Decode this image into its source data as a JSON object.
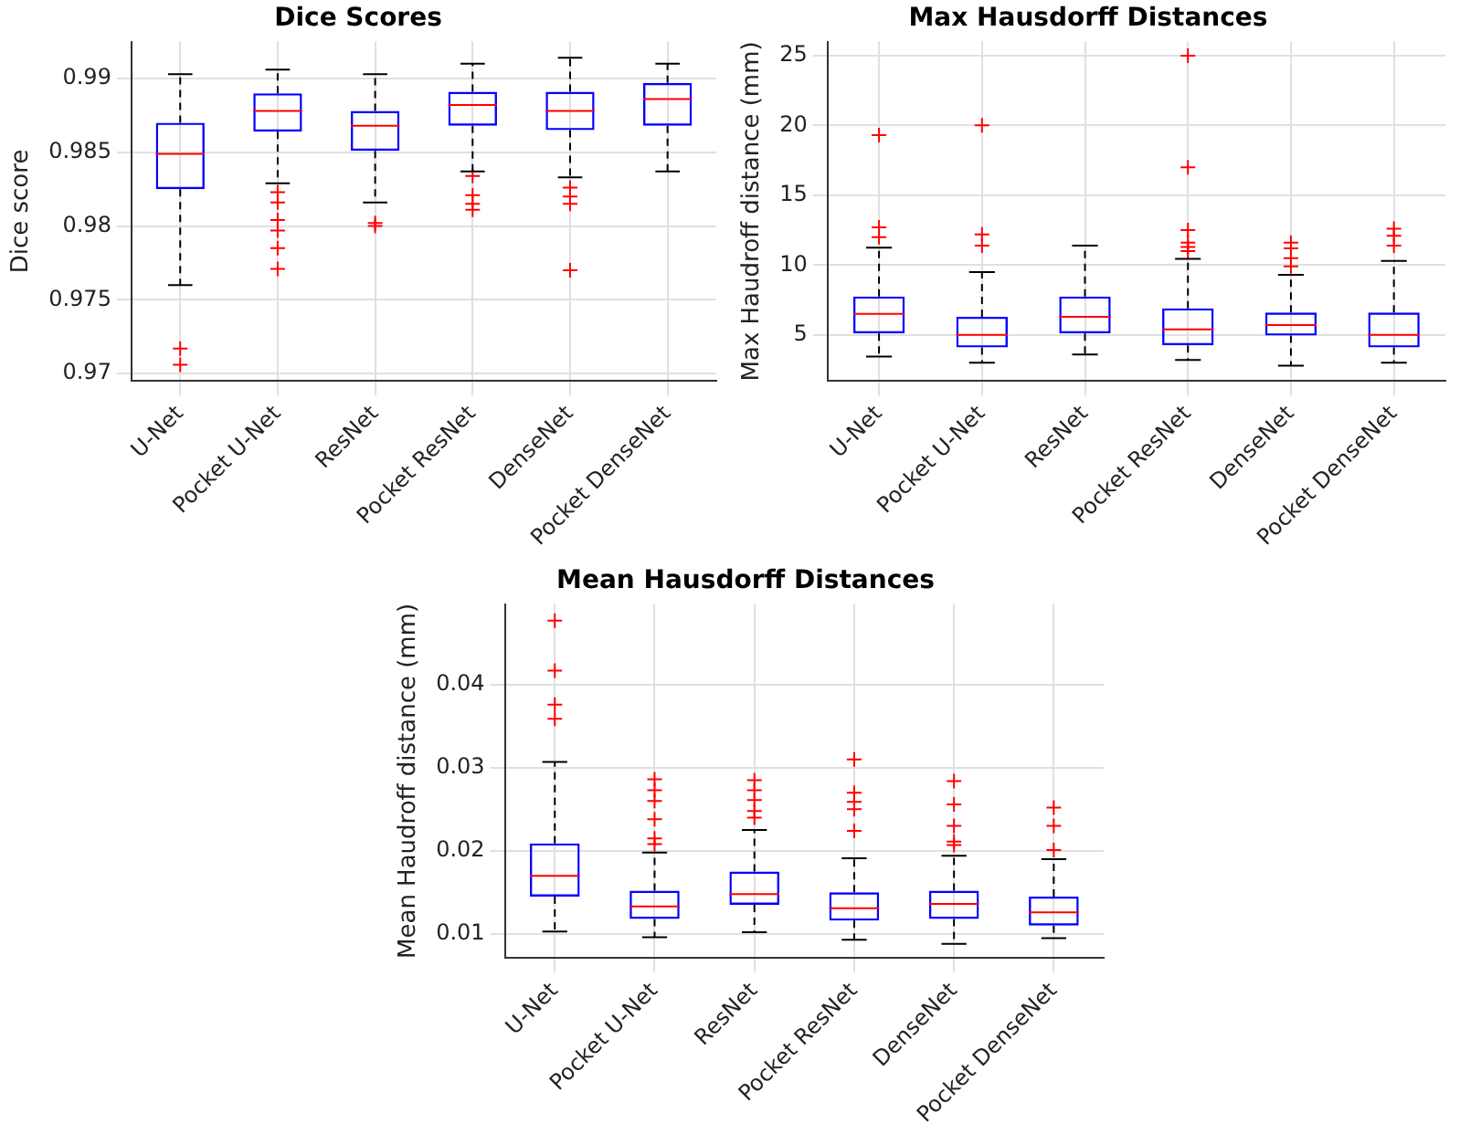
{
  "chart_data": [
    {
      "type": "box",
      "title": "Dice Scores",
      "ylabel": "Dice score",
      "categories": [
        "U-Net",
        "Pocket U-Net",
        "ResNet",
        "Pocket ResNet",
        "DenseNet",
        "Pocket DenseNet"
      ],
      "color": "#0000ff",
      "marker": "cross",
      "grid": true,
      "ylim": [
        0.9695,
        0.9925
      ],
      "yticks": [
        0.97,
        0.975,
        0.98,
        0.985,
        0.99
      ],
      "boxes": [
        {
          "low": 0.976,
          "q1": 0.9825,
          "median": 0.9849,
          "q3": 0.987,
          "high": 0.9903,
          "outliers": [
            0.9717,
            0.9706
          ]
        },
        {
          "low": 0.9829,
          "q1": 0.9864,
          "median": 0.9878,
          "q3": 0.989,
          "high": 0.9906,
          "outliers": [
            0.9823,
            0.9816,
            0.9804,
            0.9797,
            0.9785,
            0.9771
          ]
        },
        {
          "low": 0.9816,
          "q1": 0.9851,
          "median": 0.9868,
          "q3": 0.9878,
          "high": 0.9903,
          "outliers": [
            0.9802,
            0.98
          ]
        },
        {
          "low": 0.9837,
          "q1": 0.9868,
          "median": 0.9882,
          "q3": 0.9891,
          "high": 0.991,
          "outliers": [
            0.9834,
            0.9821,
            0.9815,
            0.9811
          ]
        },
        {
          "low": 0.9833,
          "q1": 0.9865,
          "median": 0.9878,
          "q3": 0.9891,
          "high": 0.9914,
          "outliers": [
            0.9826,
            0.982,
            0.9815,
            0.977
          ]
        },
        {
          "low": 0.9837,
          "q1": 0.9868,
          "median": 0.9886,
          "q3": 0.9897,
          "high": 0.991
        }
      ]
    },
    {
      "type": "box",
      "title": "Max Hausdorff Distances",
      "ylabel": "Max Haudroff distance (mm)",
      "categories": [
        "U-Net",
        "Pocket U-Net",
        "ResNet",
        "Pocket ResNet",
        "DenseNet",
        "Pocket DenseNet"
      ],
      "color": "#0000ff",
      "marker": "cross",
      "grid": true,
      "ylim": [
        1.7,
        26
      ],
      "yticks": [
        5,
        10,
        15,
        20,
        25
      ],
      "boxes": [
        {
          "low": 3.45,
          "q1": 5.1,
          "median": 6.5,
          "q3": 7.75,
          "high": 11.25,
          "outliers": [
            19.3,
            12.7,
            12.0
          ]
        },
        {
          "low": 3.0,
          "q1": 4.1,
          "median": 5.0,
          "q3": 6.3,
          "high": 9.5,
          "outliers": [
            20.0,
            12.2,
            11.4
          ]
        },
        {
          "low": 3.6,
          "q1": 5.1,
          "median": 6.3,
          "q3": 7.75,
          "high": 11.4
        },
        {
          "low": 3.2,
          "q1": 4.25,
          "median": 5.4,
          "q3": 6.9,
          "high": 10.45,
          "outliers": [
            25.0,
            17.0,
            12.5,
            11.6,
            11.3,
            11.0
          ]
        },
        {
          "low": 2.8,
          "q1": 4.95,
          "median": 5.7,
          "q3": 6.6,
          "high": 9.3,
          "outliers": [
            11.6,
            11.2,
            10.5,
            9.9
          ]
        },
        {
          "low": 3.0,
          "q1": 4.1,
          "median": 5.0,
          "q3": 6.6,
          "high": 10.3,
          "outliers": [
            12.6,
            12.1,
            11.4
          ]
        }
      ]
    },
    {
      "type": "box",
      "title": "Mean Hausdorff Distances",
      "ylabel": "Mean Haudroff distance (mm)",
      "categories": [
        "U-Net",
        "Pocket U-Net",
        "ResNet",
        "Pocket ResNet",
        "DenseNet",
        "Pocket DenseNet"
      ],
      "color": "#0000ff",
      "marker": "cross",
      "grid": true,
      "ylim": [
        0.0071,
        0.0497
      ],
      "yticks": [
        0.01,
        0.02,
        0.03,
        0.04
      ],
      "boxes": [
        {
          "low": 0.0103,
          "q1": 0.0145,
          "median": 0.017,
          "q3": 0.0209,
          "high": 0.0307,
          "outliers": [
            0.0477,
            0.0417,
            0.0376,
            0.0359
          ]
        },
        {
          "low": 0.0096,
          "q1": 0.0118,
          "median": 0.0133,
          "q3": 0.0152,
          "high": 0.0198,
          "outliers": [
            0.0286,
            0.0273,
            0.026,
            0.0238,
            0.0215,
            0.0208
          ]
        },
        {
          "low": 0.0102,
          "q1": 0.0135,
          "median": 0.0148,
          "q3": 0.0175,
          "high": 0.0225,
          "outliers": [
            0.0285,
            0.0273,
            0.0261,
            0.0248,
            0.024
          ]
        },
        {
          "low": 0.0093,
          "q1": 0.0116,
          "median": 0.0131,
          "q3": 0.015,
          "high": 0.0191,
          "outliers": [
            0.031,
            0.027,
            0.0259,
            0.025,
            0.0224
          ]
        },
        {
          "low": 0.0088,
          "q1": 0.0118,
          "median": 0.0136,
          "q3": 0.0152,
          "high": 0.0194,
          "outliers": [
            0.0284,
            0.0256,
            0.023,
            0.0211,
            0.0207
          ]
        },
        {
          "low": 0.0095,
          "q1": 0.011,
          "median": 0.0126,
          "q3": 0.0145,
          "high": 0.019,
          "outliers": [
            0.0252,
            0.023,
            0.0201
          ]
        }
      ]
    }
  ]
}
